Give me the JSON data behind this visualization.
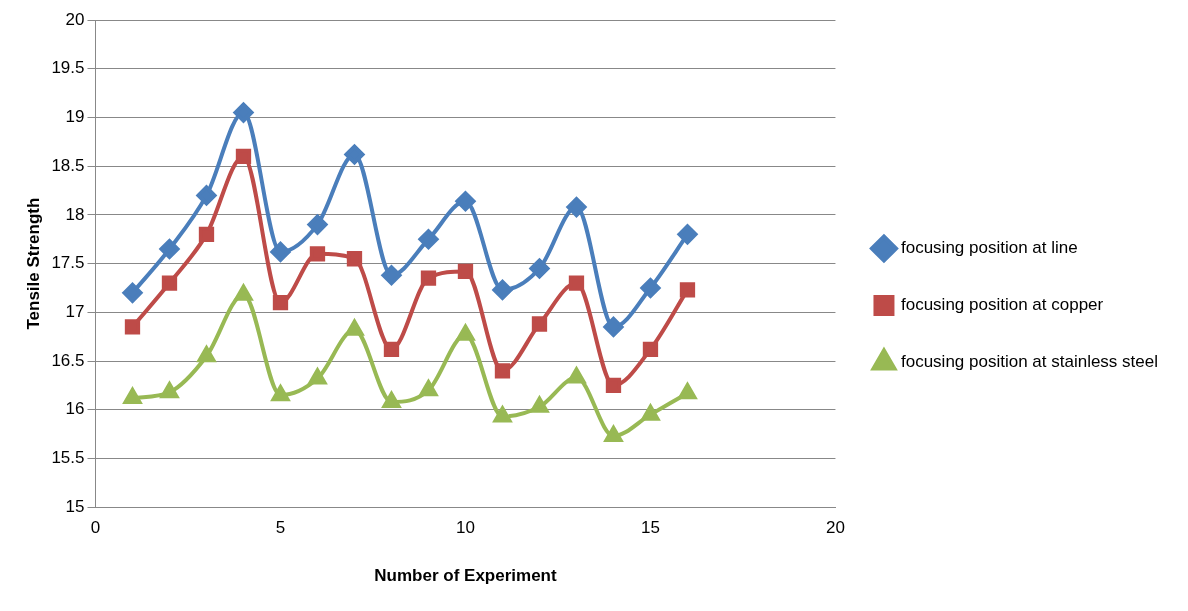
{
  "chart_data": {
    "type": "line",
    "xlabel": "Number of Experiment",
    "ylabel": "Tensile Strength",
    "x": [
      1,
      2,
      3,
      4,
      5,
      6,
      7,
      8,
      9,
      10,
      11,
      12,
      13,
      14,
      15,
      16
    ],
    "series": [
      {
        "name": "focusing position at line",
        "color": "#4a7ebb",
        "marker": "diamond",
        "values": [
          17.2,
          17.65,
          18.2,
          19.05,
          17.62,
          17.9,
          18.62,
          17.38,
          17.75,
          18.14,
          17.23,
          17.45,
          18.08,
          16.85,
          17.25,
          17.8
        ]
      },
      {
        "name": "focusing position at copper",
        "color": "#be4b48",
        "marker": "square",
        "values": [
          16.85,
          17.3,
          17.8,
          18.6,
          17.1,
          17.6,
          17.55,
          16.62,
          17.35,
          17.42,
          16.4,
          16.88,
          17.3,
          16.25,
          16.62,
          17.23
        ]
      },
      {
        "name": "focusing position at stainless steel",
        "color": "#98b954",
        "marker": "triangle",
        "values": [
          16.12,
          16.18,
          16.55,
          17.18,
          16.15,
          16.32,
          16.82,
          16.08,
          16.2,
          16.77,
          15.93,
          16.03,
          16.33,
          15.73,
          15.95,
          16.17
        ]
      }
    ],
    "xlim": [
      0,
      20
    ],
    "xticks": [
      0,
      5,
      10,
      15,
      20
    ],
    "ylim": [
      15,
      20
    ],
    "yticks": [
      15,
      15.5,
      16,
      16.5,
      17,
      17.5,
      18,
      18.5,
      19,
      19.5,
      20
    ],
    "grid": "y",
    "legend": "right"
  }
}
